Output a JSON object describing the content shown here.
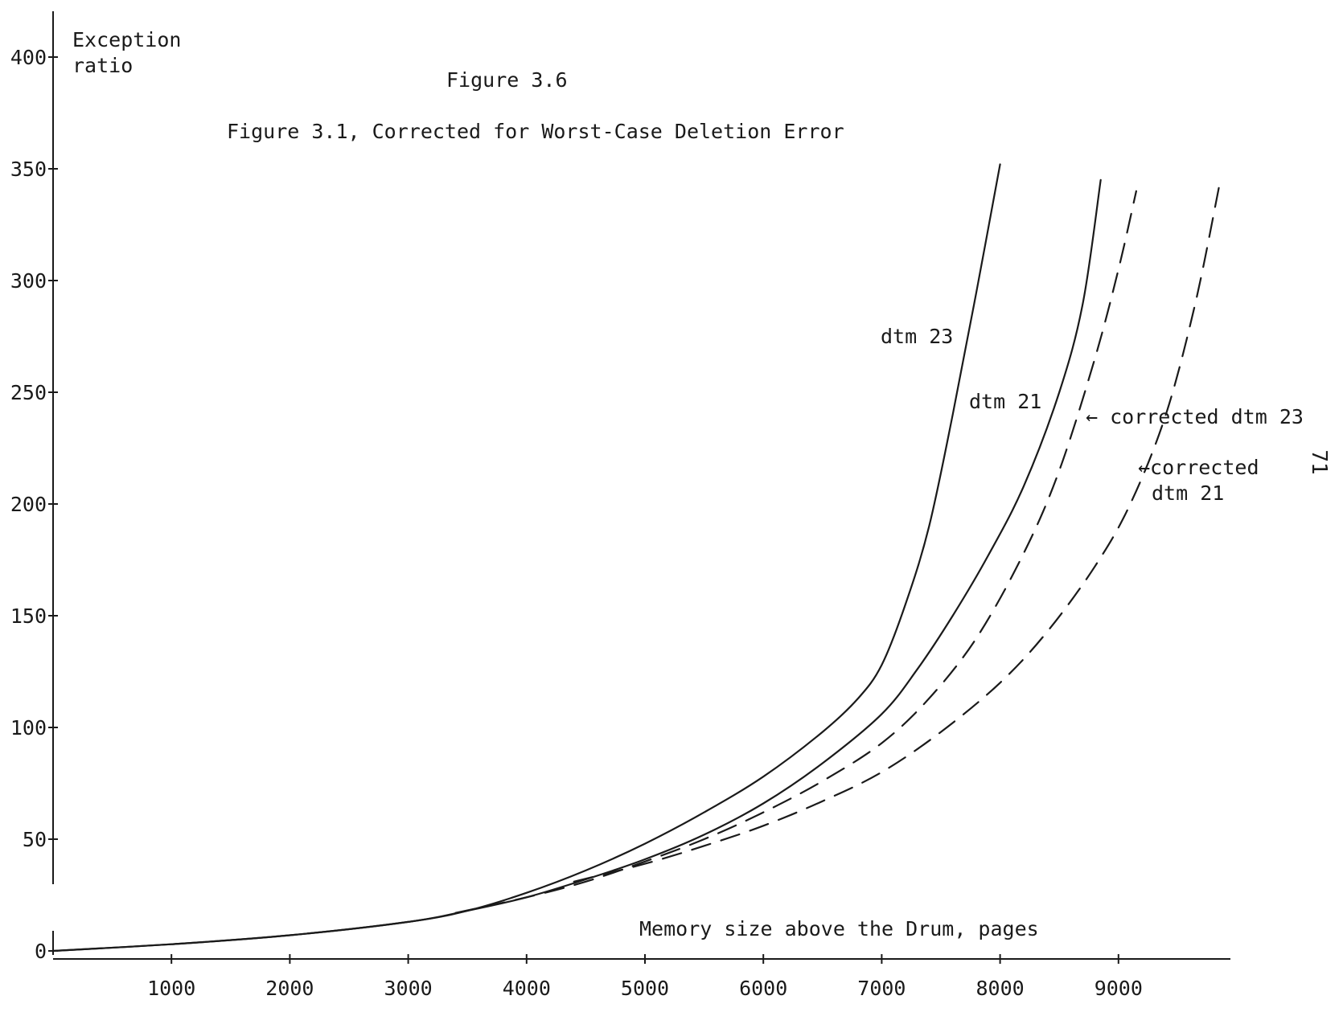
{
  "chart_data": {
    "type": "line",
    "title": "Figure 3.6",
    "subtitle": "Figure 3.1, Corrected for Worst-Case Deletion Error",
    "xlabel": "Memory size above the Drum, pages",
    "ylabel": "Exception ratio",
    "xlim": [
      0,
      10000
    ],
    "ylim": [
      0,
      400
    ],
    "x_ticks": [
      "1000",
      "2000",
      "3000",
      "4000",
      "5000",
      "6000",
      "7000",
      "8000",
      "9000"
    ],
    "y_ticks": [
      "0",
      "50",
      "100",
      "150",
      "200",
      "250",
      "300",
      "350",
      "400"
    ],
    "grid": false,
    "series": [
      {
        "name": "dtm 23",
        "style": "solid",
        "x": [
          0,
          1000,
          2000,
          3000,
          3500,
          4000,
          4500,
          5000,
          5500,
          6000,
          6500,
          6800,
          7000,
          7200,
          7400,
          7600,
          7800,
          8000
        ],
        "y": [
          0,
          3,
          7,
          13,
          18,
          26,
          36,
          48,
          62,
          78,
          98,
          113,
          128,
          155,
          190,
          240,
          295,
          352
        ]
      },
      {
        "name": "dtm 21",
        "style": "solid",
        "x": [
          0,
          1000,
          2000,
          3000,
          3500,
          4000,
          4500,
          5000,
          5500,
          6000,
          6500,
          7000,
          7300,
          7600,
          7900,
          8200,
          8500,
          8700,
          8850
        ],
        "y": [
          0,
          3,
          7,
          13,
          18,
          24,
          32,
          41,
          52,
          66,
          84,
          106,
          126,
          150,
          177,
          208,
          250,
          290,
          345
        ]
      },
      {
        "name": "corrected dtm 23",
        "style": "dashed",
        "x": [
          3400,
          4000,
          4500,
          5000,
          5500,
          6000,
          6500,
          7000,
          7400,
          7800,
          8200,
          8500,
          8800,
          9000,
          9150
        ],
        "y": [
          17,
          24,
          31,
          40,
          50,
          62,
          76,
          93,
          113,
          140,
          178,
          215,
          265,
          305,
          340
        ]
      },
      {
        "name": "corrected dtm 21",
        "style": "dashed",
        "x": [
          4400,
          5000,
          5500,
          6000,
          6500,
          7000,
          7500,
          8000,
          8400,
          8800,
          9100,
          9400,
          9650,
          9850
        ],
        "y": [
          31,
          39,
          47,
          56,
          67,
          80,
          98,
          120,
          143,
          172,
          200,
          240,
          290,
          342
        ]
      }
    ],
    "annotations": [
      {
        "id": "dtm23",
        "text": "dtm 23"
      },
      {
        "id": "dtm21",
        "text": "dtm 21"
      },
      {
        "id": "corrected23",
        "text": "← corrected dtm 23"
      },
      {
        "id": "corrected21_line1",
        "text": "←corrected"
      },
      {
        "id": "corrected21_line2",
        "text": "dtm 21"
      }
    ],
    "ylabel_lines": [
      "Exception",
      "ratio"
    ]
  },
  "page_number": "71"
}
